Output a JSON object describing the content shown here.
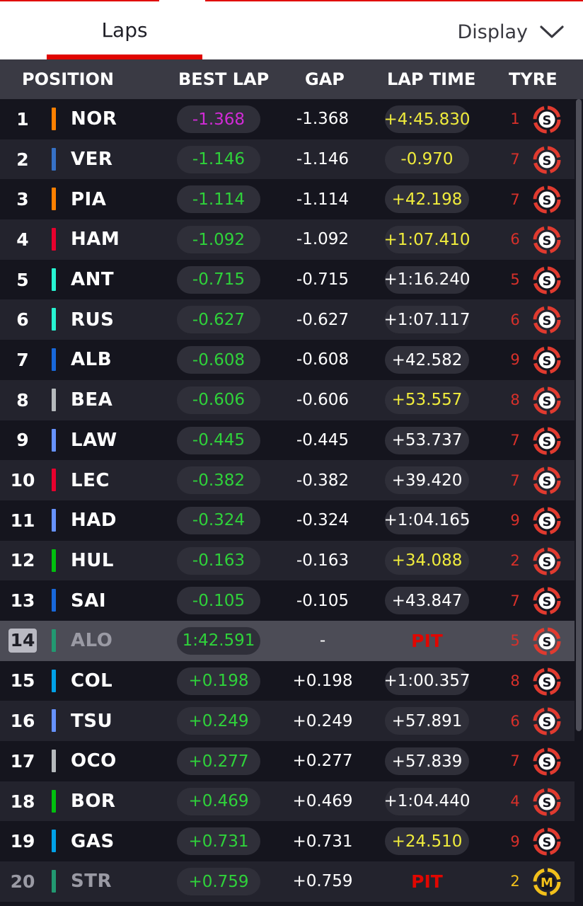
{
  "tabs": {
    "laps_label": "Laps",
    "display_label": "Display"
  },
  "columns": {
    "position": "POSITION",
    "best_lap": "BEST LAP",
    "gap": "GAP",
    "lap_time": "LAP TIME",
    "tyre": "TYRE"
  },
  "colors": {
    "accent_red": "#e10600",
    "fastest_purple": "#d12bd6",
    "improve_green": "#2fd23a",
    "personal_yellow": "#f0ec3c",
    "soft_tyre": "#e03a2f",
    "medium_tyre": "#f2c01b"
  },
  "rows": [
    {
      "pos": "1",
      "code": "NOR",
      "team_color": "#ff8000",
      "best": "-1.368",
      "best_color": "purple",
      "gap": "-1.368",
      "lap": "+4:45.830",
      "lap_color": "yellow",
      "age": "1",
      "tyre": "S",
      "status": "normal"
    },
    {
      "pos": "2",
      "code": "VER",
      "team_color": "#3671c6",
      "best": "-1.146",
      "best_color": "green",
      "gap": "-1.146",
      "lap": "-0.970",
      "lap_color": "yellow",
      "age": "7",
      "tyre": "S",
      "status": "normal"
    },
    {
      "pos": "3",
      "code": "PIA",
      "team_color": "#ff8000",
      "best": "-1.114",
      "best_color": "green",
      "gap": "-1.114",
      "lap": "+42.198",
      "lap_color": "yellow",
      "age": "7",
      "tyre": "S",
      "status": "normal"
    },
    {
      "pos": "4",
      "code": "HAM",
      "team_color": "#e8002d",
      "best": "-1.092",
      "best_color": "green",
      "gap": "-1.092",
      "lap": "+1:07.410",
      "lap_color": "yellow",
      "age": "6",
      "tyre": "S",
      "status": "normal"
    },
    {
      "pos": "5",
      "code": "ANT",
      "team_color": "#27f4d2",
      "best": "-0.715",
      "best_color": "green",
      "gap": "-0.715",
      "lap": "+1:16.240",
      "lap_color": "white",
      "age": "5",
      "tyre": "S",
      "status": "normal"
    },
    {
      "pos": "6",
      "code": "RUS",
      "team_color": "#27f4d2",
      "best": "-0.627",
      "best_color": "green",
      "gap": "-0.627",
      "lap": "+1:07.117",
      "lap_color": "white",
      "age": "6",
      "tyre": "S",
      "status": "normal"
    },
    {
      "pos": "7",
      "code": "ALB",
      "team_color": "#1868db",
      "best": "-0.608",
      "best_color": "green",
      "gap": "-0.608",
      "lap": "+42.582",
      "lap_color": "white",
      "age": "9",
      "tyre": "S",
      "status": "normal"
    },
    {
      "pos": "8",
      "code": "BEA",
      "team_color": "#b6babd",
      "best": "-0.606",
      "best_color": "green",
      "gap": "-0.606",
      "lap": "+53.557",
      "lap_color": "yellow",
      "age": "8",
      "tyre": "S",
      "status": "normal"
    },
    {
      "pos": "9",
      "code": "LAW",
      "team_color": "#6692ff",
      "best": "-0.445",
      "best_color": "green",
      "gap": "-0.445",
      "lap": "+53.737",
      "lap_color": "white",
      "age": "7",
      "tyre": "S",
      "status": "normal"
    },
    {
      "pos": "10",
      "code": "LEC",
      "team_color": "#e8002d",
      "best": "-0.382",
      "best_color": "green",
      "gap": "-0.382",
      "lap": "+39.420",
      "lap_color": "white",
      "age": "7",
      "tyre": "S",
      "status": "normal"
    },
    {
      "pos": "11",
      "code": "HAD",
      "team_color": "#6692ff",
      "best": "-0.324",
      "best_color": "green",
      "gap": "-0.324",
      "lap": "+1:04.165",
      "lap_color": "white",
      "age": "9",
      "tyre": "S",
      "status": "normal"
    },
    {
      "pos": "12",
      "code": "HUL",
      "team_color": "#01c00e",
      "best": "-0.163",
      "best_color": "green",
      "gap": "-0.163",
      "lap": "+34.088",
      "lap_color": "yellow",
      "age": "2",
      "tyre": "S",
      "status": "normal"
    },
    {
      "pos": "13",
      "code": "SAI",
      "team_color": "#1868db",
      "best": "-0.105",
      "best_color": "green",
      "gap": "-0.105",
      "lap": "+43.847",
      "lap_color": "white",
      "age": "7",
      "tyre": "S",
      "status": "normal"
    },
    {
      "pos": "14",
      "code": "ALO",
      "team_color": "#229971",
      "best": "1:42.591",
      "best_color": "green",
      "gap": "-",
      "lap": "PIT",
      "lap_color": "red",
      "age": "5",
      "tyre": "S",
      "status": "pit"
    },
    {
      "pos": "15",
      "code": "COL",
      "team_color": "#00a1e8",
      "best": "+0.198",
      "best_color": "green",
      "gap": "+0.198",
      "lap": "+1:00.357",
      "lap_color": "white",
      "age": "8",
      "tyre": "S",
      "status": "normal"
    },
    {
      "pos": "16",
      "code": "TSU",
      "team_color": "#6692ff",
      "best": "+0.249",
      "best_color": "green",
      "gap": "+0.249",
      "lap": "+57.891",
      "lap_color": "white",
      "age": "6",
      "tyre": "S",
      "status": "normal"
    },
    {
      "pos": "17",
      "code": "OCO",
      "team_color": "#b6babd",
      "best": "+0.277",
      "best_color": "green",
      "gap": "+0.277",
      "lap": "+57.839",
      "lap_color": "white",
      "age": "7",
      "tyre": "S",
      "status": "normal"
    },
    {
      "pos": "18",
      "code": "BOR",
      "team_color": "#01c00e",
      "best": "+0.469",
      "best_color": "green",
      "gap": "+0.469",
      "lap": "+1:04.440",
      "lap_color": "white",
      "age": "4",
      "tyre": "S",
      "status": "normal"
    },
    {
      "pos": "19",
      "code": "GAS",
      "team_color": "#00a1e8",
      "best": "+0.731",
      "best_color": "green",
      "gap": "+0.731",
      "lap": "+24.510",
      "lap_color": "yellow",
      "age": "9",
      "tyre": "S",
      "status": "normal"
    },
    {
      "pos": "20",
      "code": "STR",
      "team_color": "#229971",
      "best": "+0.759",
      "best_color": "green",
      "gap": "+0.759",
      "lap": "PIT",
      "lap_color": "red",
      "age": "2",
      "tyre": "M",
      "status": "pit-lane"
    }
  ]
}
